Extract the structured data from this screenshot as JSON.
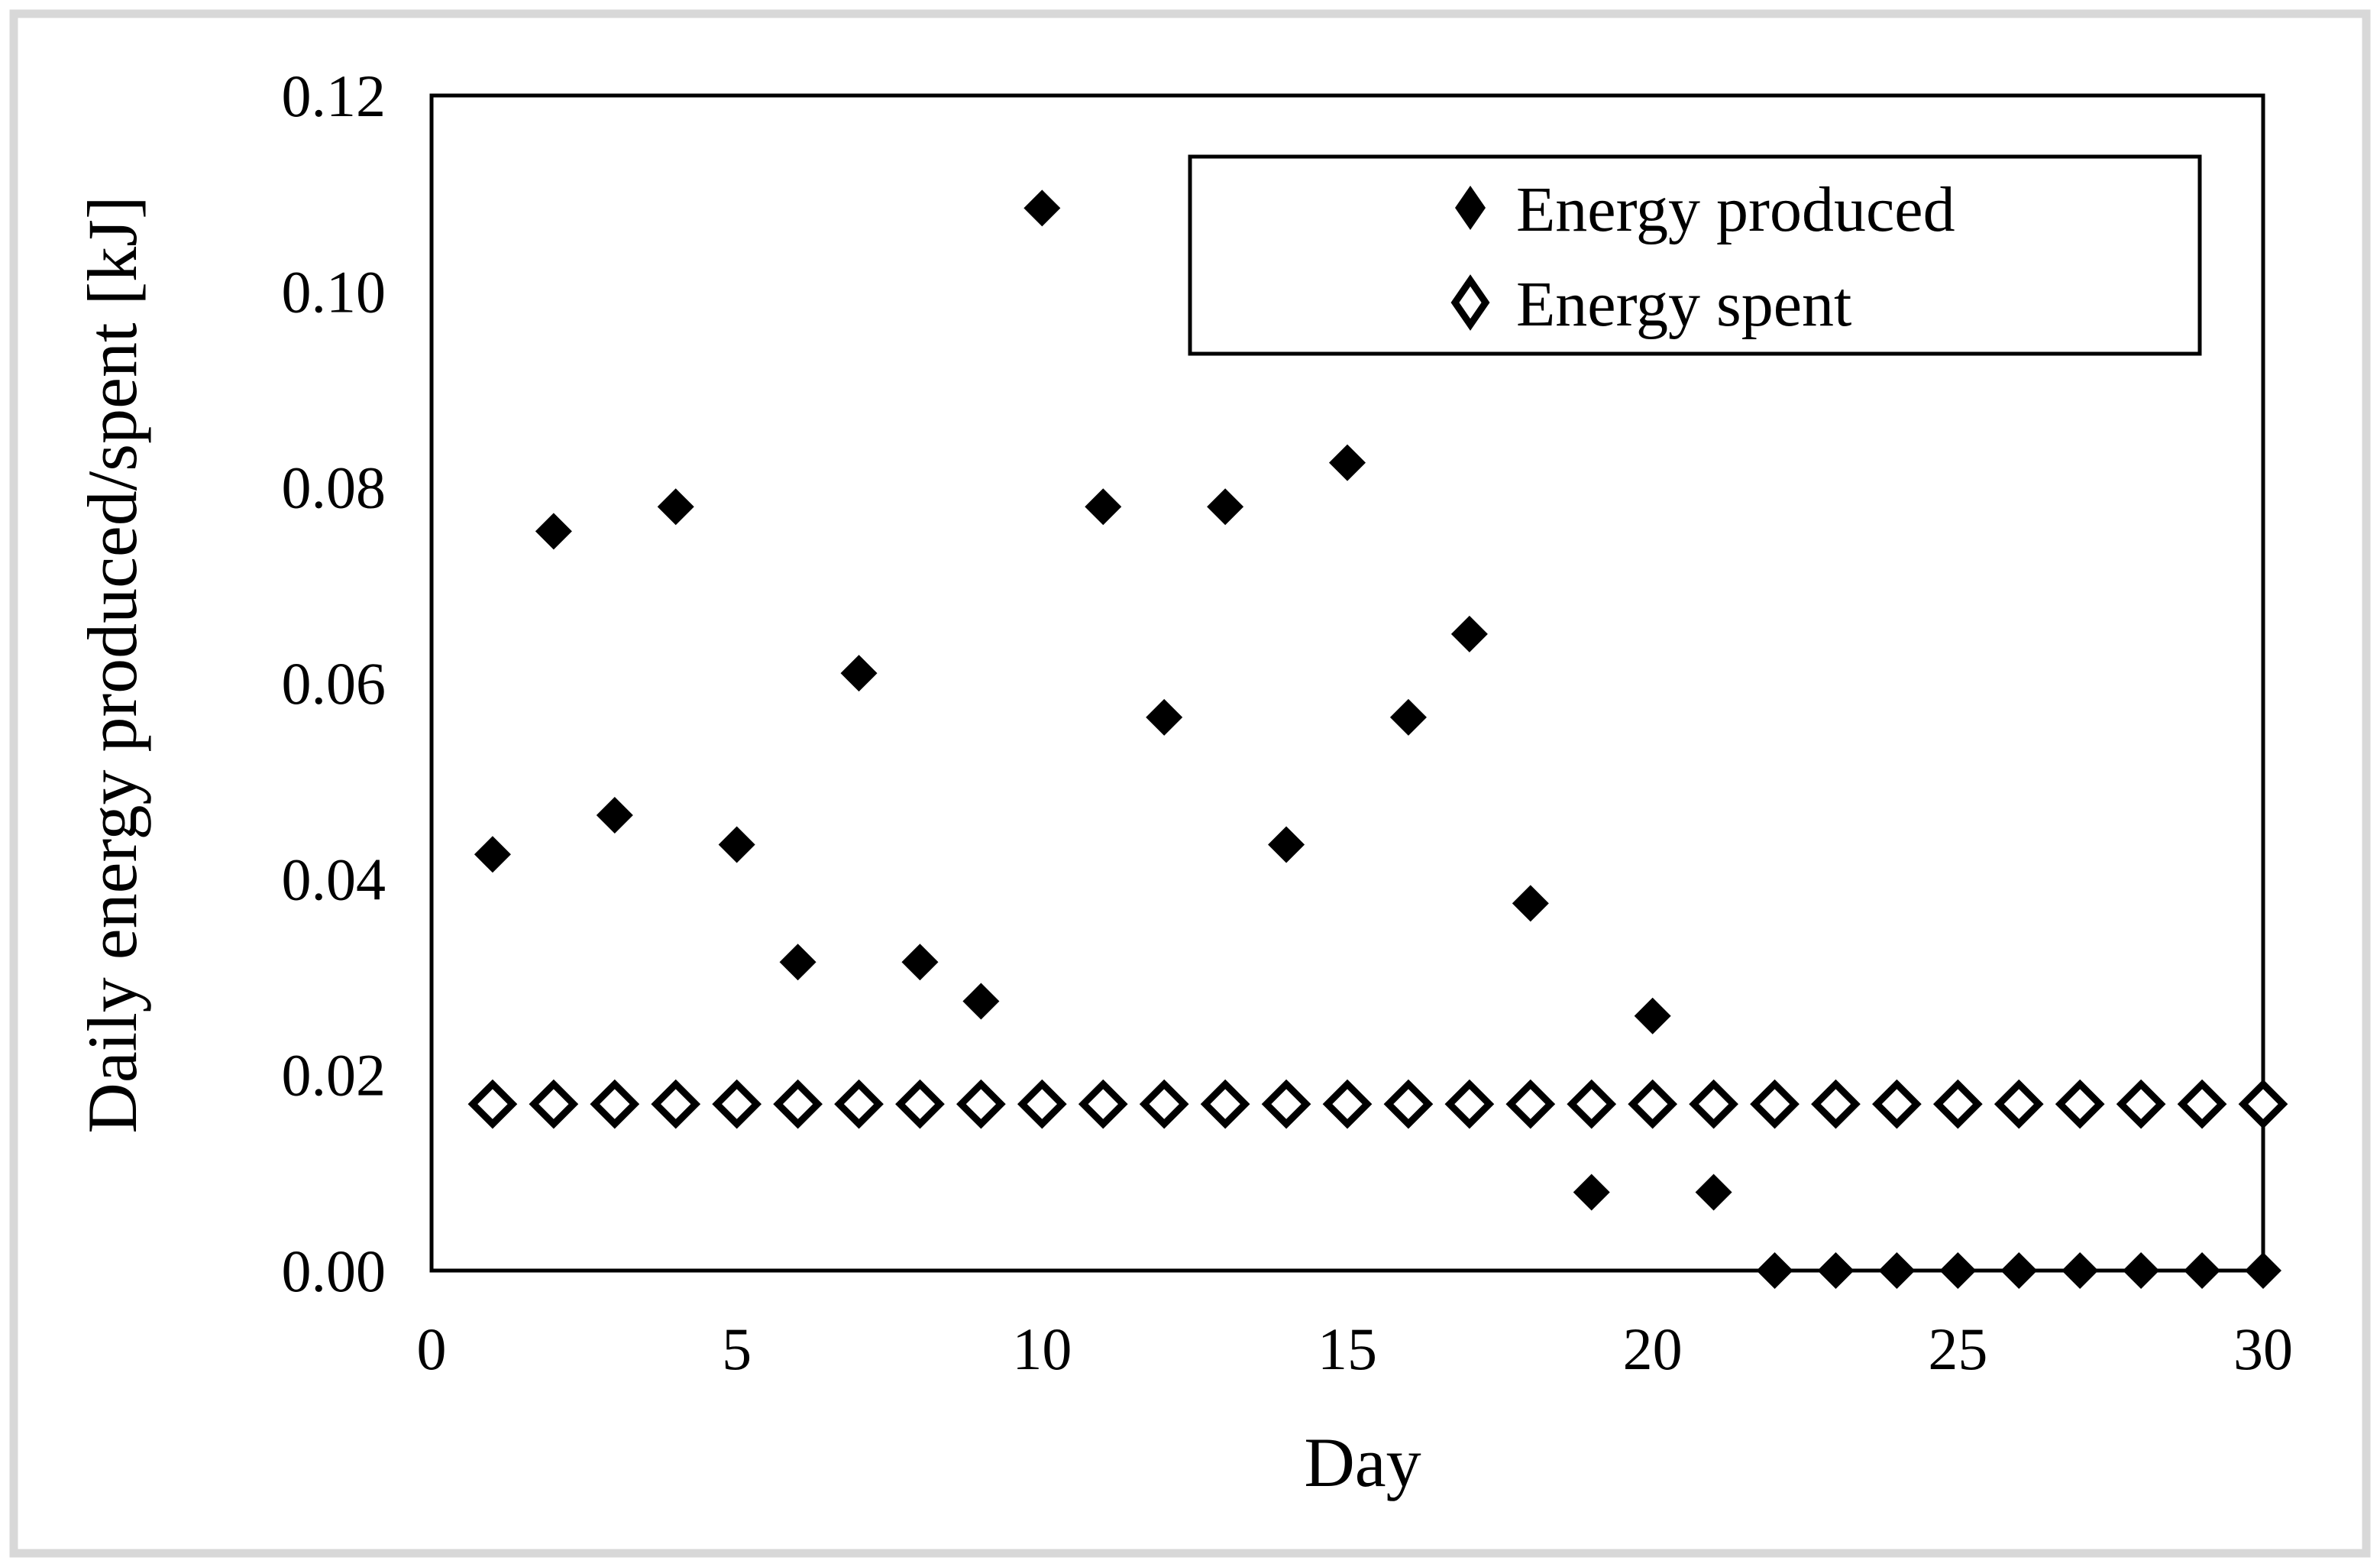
{
  "figure": {
    "background_color": "#ffffff",
    "frame_color": "#d8d8d8",
    "line_color": "#000000",
    "y_axis_title": "Daily energy produced/spent [kJ]",
    "x_axis_title": "Day",
    "y_ticks": [
      "0.12",
      "0.10",
      "0.08",
      "0.06",
      "0.04",
      "0.02",
      "0.00"
    ],
    "x_ticks": [
      "0",
      "5",
      "10",
      "15",
      "20",
      "25",
      "30"
    ],
    "legend": {
      "items": [
        {
          "label": "Energy produced",
          "marker": "filled-diamond-icon"
        },
        {
          "label": "Energy spent",
          "marker": "open-diamond-icon"
        }
      ]
    }
  },
  "chart_data": {
    "type": "scatter",
    "title": "",
    "xlabel": "Day",
    "ylabel": "Daily energy produced/spent [kJ]",
    "xlim": [
      0,
      30
    ],
    "ylim": [
      0,
      0.12
    ],
    "grid": false,
    "legend_position": "top-right-inside",
    "x": [
      1,
      2,
      3,
      4,
      5,
      6,
      7,
      8,
      9,
      10,
      11,
      12,
      13,
      14,
      15,
      16,
      17,
      18,
      19,
      20,
      21,
      22,
      23,
      24,
      25,
      26,
      27,
      28,
      29,
      30
    ],
    "series": [
      {
        "name": "Energy produced",
        "marker": "filled-diamond",
        "color": "#000000",
        "values": [
          0.0425,
          0.0755,
          0.0465,
          0.078,
          0.0435,
          0.0315,
          0.061,
          0.0315,
          0.0275,
          0.1085,
          0.078,
          0.0565,
          0.078,
          0.0435,
          0.0825,
          0.0565,
          0.065,
          0.0375,
          0.008,
          0.026,
          0.008,
          0,
          0,
          0,
          0,
          0,
          0,
          0,
          0,
          0
        ]
      },
      {
        "name": "Energy spent",
        "marker": "open-diamond",
        "color": "#000000",
        "values": [
          0.017,
          0.017,
          0.017,
          0.017,
          0.017,
          0.017,
          0.017,
          0.017,
          0.017,
          0.017,
          0.017,
          0.017,
          0.017,
          0.017,
          0.017,
          0.017,
          0.017,
          0.017,
          0.017,
          0.017,
          0.017,
          0.017,
          0.017,
          0.017,
          0.017,
          0.017,
          0.017,
          0.017,
          0.017,
          0.017
        ]
      }
    ]
  }
}
